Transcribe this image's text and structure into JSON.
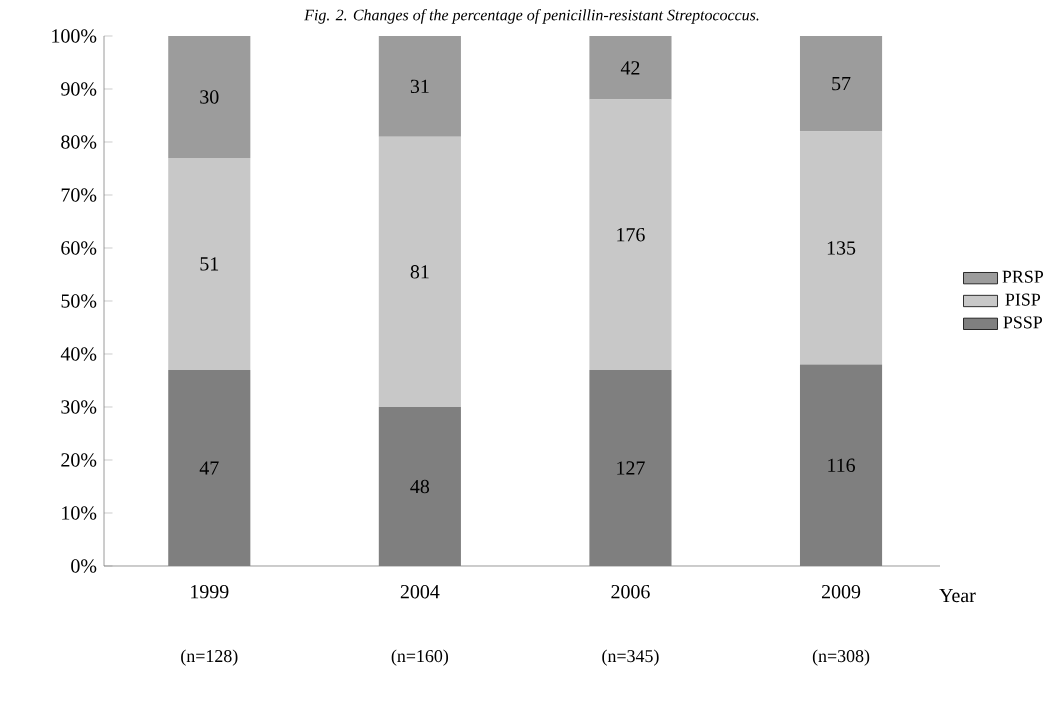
{
  "chart_data": {
    "type": "bar",
    "stacked": true,
    "title": "Fig. 2.  Changes of the percentage of penicillin-resistant Streptococcus.",
    "xlabel": "Year",
    "categories": [
      "1999",
      "2004",
      "2006",
      "2009"
    ],
    "series": [
      {
        "name": "PSSP",
        "color": "#7f7f7f",
        "values": [
          37,
          30,
          37,
          38
        ]
      },
      {
        "name": "PISP",
        "color": "#c8c8c8",
        "values": [
          40,
          51,
          51,
          44
        ]
      },
      {
        "name": "PRSP",
        "color": "#9c9c9c",
        "values": [
          23,
          19,
          12,
          18
        ]
      }
    ],
    "ylim": [
      0,
      100
    ],
    "yticks": [
      {
        "value": 0,
        "label": "0%"
      },
      {
        "value": 10,
        "label": "10%"
      },
      {
        "value": 20,
        "label": "20%"
      },
      {
        "value": 30,
        "label": "30%"
      },
      {
        "value": 40,
        "label": "40%"
      },
      {
        "value": 50,
        "label": "50%"
      },
      {
        "value": 60,
        "label": "60%"
      },
      {
        "value": 70,
        "label": "70%"
      },
      {
        "value": 80,
        "label": "80%"
      },
      {
        "value": 90,
        "label": "90%"
      },
      {
        "value": 100,
        "label": "100%"
      }
    ],
    "legend": "right",
    "grid": false,
    "annotations": [
      "(n=128)",
      "(n=160)",
      "(n=345)",
      "(n=308)",
      "47",
      "48",
      "127",
      "116",
      "51",
      "81",
      "176",
      "135",
      "30",
      "31",
      "42",
      "57"
    ]
  }
}
